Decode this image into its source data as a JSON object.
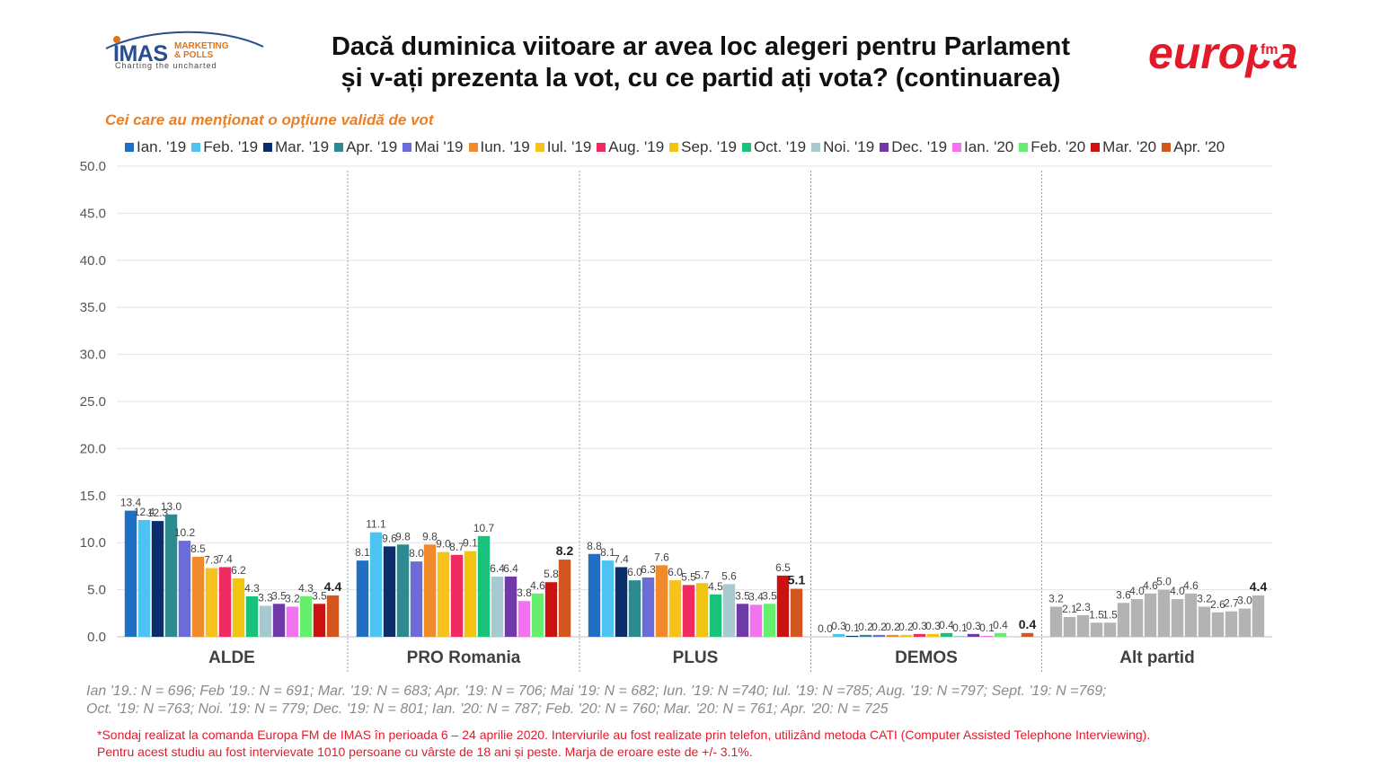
{
  "header": {
    "title_line1": "Dacă duminica viitoare ar avea loc alegeri pentru Parlament",
    "title_line2": "și v-ați prezenta la vot, cu ce partid ați vota? (continuarea)",
    "subtitle": "Cei care au menţionat o opţiune validă de vot"
  },
  "logos": {
    "imas": {
      "word": "IMAS",
      "line1": "MARKETING",
      "line2": "& POLLS",
      "tagline": "Charting the uncharted"
    },
    "europa": {
      "word": "europa",
      "suffix": "fm"
    }
  },
  "colors": {
    "series": [
      "#1f6fc5",
      "#4cc3f0",
      "#0c2d6b",
      "#2e8a8f",
      "#6c6cd8",
      "#f08a2a",
      "#f7c21c",
      "#ef2b62",
      "#f1c40f",
      "#18c27a",
      "#a7c9d0",
      "#6f3aa8",
      "#f272f0",
      "#66ee6e",
      "#cc1111",
      "#d4561f"
    ],
    "alt_bar": "#b3b3b3",
    "brand_red": "#e21b2b",
    "subtitle": "#e8802a"
  },
  "chart_data": {
    "type": "bar",
    "title": "Dacă duminica viitoare ar avea loc alegeri pentru Parlament și v-ați prezenta la vot, cu ce partid ați vota? (continuarea)",
    "categories": [
      "ALDE",
      "PRO Romania",
      "PLUS",
      "DEMOS",
      "Alt partid"
    ],
    "ylim": [
      0,
      50
    ],
    "yticks": [
      "0.0",
      "5.0",
      "10.0",
      "15.0",
      "20.0",
      "25.0",
      "30.0",
      "35.0",
      "40.0",
      "45.0",
      "50.0"
    ],
    "grid": true,
    "legend_position": "top",
    "series": [
      {
        "name": "Ian. '19",
        "values": [
          13.4,
          8.1,
          8.8,
          0.0,
          3.2
        ]
      },
      {
        "name": "Feb. '19",
        "values": [
          12.4,
          11.1,
          8.1,
          0.3,
          2.1
        ]
      },
      {
        "name": "Mar. '19",
        "values": [
          12.3,
          9.6,
          7.4,
          0.1,
          2.3
        ]
      },
      {
        "name": "Apr. '19",
        "values": [
          13.0,
          9.8,
          6.0,
          0.2,
          1.5
        ]
      },
      {
        "name": "Mai '19",
        "values": [
          10.2,
          8.0,
          6.3,
          0.2,
          1.5
        ]
      },
      {
        "name": "Iun. '19",
        "values": [
          8.5,
          9.8,
          7.6,
          0.2,
          3.6
        ]
      },
      {
        "name": "Iul. '19",
        "values": [
          7.3,
          9.0,
          6.0,
          0.2,
          4.0
        ]
      },
      {
        "name": "Aug. '19",
        "values": [
          7.4,
          8.7,
          5.5,
          0.3,
          4.6
        ]
      },
      {
        "name": "Sep. '19",
        "values": [
          6.2,
          9.1,
          5.7,
          0.3,
          5.0
        ]
      },
      {
        "name": "Oct. '19",
        "values": [
          4.3,
          10.7,
          4.5,
          0.4,
          4.0
        ]
      },
      {
        "name": "Noi. '19",
        "values": [
          3.3,
          6.4,
          5.6,
          0.1,
          4.6
        ]
      },
      {
        "name": "Dec. '19",
        "values": [
          3.5,
          6.4,
          3.5,
          0.3,
          3.2
        ]
      },
      {
        "name": "Ian. '20",
        "values": [
          3.2,
          3.8,
          3.4,
          0.1,
          2.6
        ]
      },
      {
        "name": "Feb. '20",
        "values": [
          4.3,
          4.6,
          3.5,
          0.4,
          2.7
        ]
      },
      {
        "name": "Mar. '20",
        "values": [
          3.5,
          5.8,
          6.5,
          0.0,
          3.0
        ]
      },
      {
        "name": "Apr. '20",
        "values": [
          4.4,
          8.2,
          5.1,
          0.4,
          4.4
        ]
      }
    ],
    "data_labels": [
      [
        "13.4",
        "12.4",
        "12.3",
        "13.0",
        "10.2",
        "8.5",
        "7.3",
        "7.4",
        "6.2",
        "4.3",
        "3.3",
        "3.5",
        "3.2",
        "4.3",
        "3.5",
        "4.4"
      ],
      [
        "8.1",
        "11.1",
        "9.6",
        "9.8",
        "8.0",
        "9.8",
        "9.0",
        "8.7",
        "9.1",
        "10.7",
        "6.4",
        "6.4",
        "3.8",
        "4.6",
        "5.8",
        "8.2"
      ],
      [
        "8.8",
        "8.1",
        "7.4",
        "6.0",
        "6.3",
        "7.6",
        "6.0",
        "5.5",
        "5.7",
        "4.5",
        "5.6",
        "3.5",
        "3.4",
        "3.5",
        "6.5",
        "5.1"
      ],
      [
        "0.0",
        "0.3",
        "0.1",
        "0.2",
        "0.2",
        "0.2",
        "0.2",
        "0.3",
        "0.3",
        "0.4",
        "0.1",
        "0.3",
        "0.1",
        "0.4",
        "",
        "0.4"
      ],
      [
        "3.2",
        "2.1",
        "2.3",
        "1.5",
        "1.5",
        "3.6",
        "4.0",
        "4.6",
        "5.0",
        "4.0",
        "4.6",
        "3.2",
        "2.6",
        "2.7",
        "3.0",
        "4.4"
      ]
    ]
  },
  "notes": {
    "line1": "Ian '19.: N = 696; Feb '19.: N = 691; Mar. '19: N = 683; Apr. '19: N = 706; Mai '19: N = 682; Iun. '19: N =740; Iul. '19: N =785; Aug. '19: N =797; Sept. '19: N =769;",
    "line2": "Oct. '19: N =763; Noi. '19: N = 779; Dec. '19: N = 801; Ian. '20: N = 787; Feb. '20: N = 760; Mar. '20: N = 761; Apr. '20: N = 725"
  },
  "footnote": {
    "line1": "*Sondaj realizat la comanda Europa FM de IMAS în perioada  6 – 24 aprilie 2020. Interviurile au fost realizate prin telefon, utilizând metoda CATI (Computer Assisted Telephone Interviewing).",
    "line2": "Pentru acest studiu au fost intervievate 1010 persoane cu vârste de 18 ani și peste. Marja de eroare este de +/- 3.1%."
  }
}
